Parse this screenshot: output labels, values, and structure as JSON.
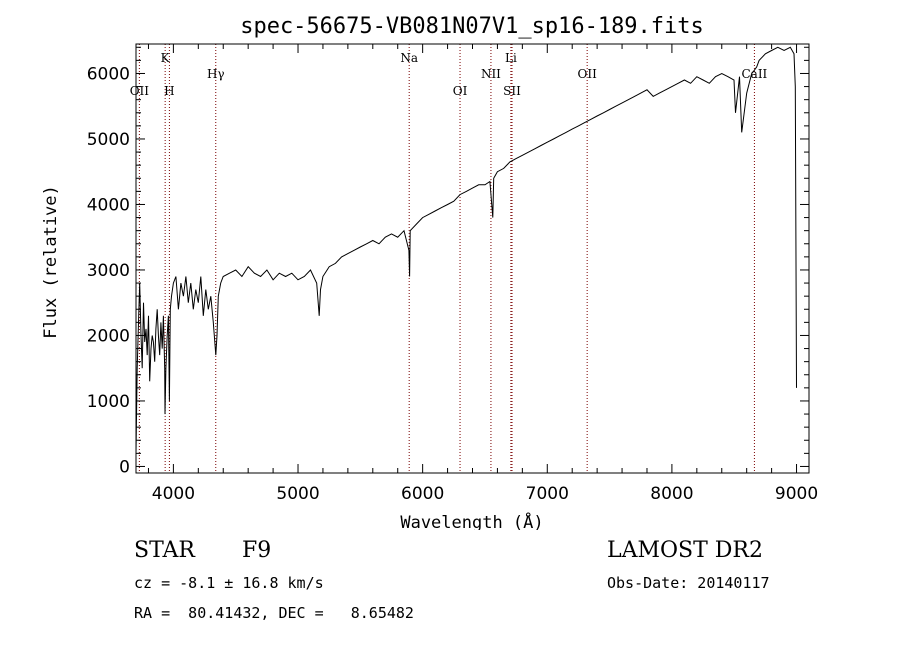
{
  "chart_data": {
    "type": "line",
    "title": "spec-56675-VB081N07V1_sp16-189.fits",
    "xlabel": "Wavelength (Å)",
    "ylabel": "Flux (relative)",
    "xlim": [
      3700,
      9100
    ],
    "ylim": [
      -100,
      6450
    ],
    "xticks": [
      4000,
      5000,
      6000,
      7000,
      8000,
      9000
    ],
    "yticks": [
      0,
      1000,
      2000,
      3000,
      4000,
      5000,
      6000
    ],
    "grid": false,
    "series": [
      {
        "x": [
          3700,
          3710,
          3720,
          3730,
          3740,
          3750,
          3760,
          3770,
          3780,
          3790,
          3800,
          3810,
          3820,
          3830,
          3840,
          3850,
          3860,
          3870,
          3880,
          3890,
          3900,
          3910,
          3920,
          3930,
          3933,
          3940,
          3950,
          3960,
          3968,
          3975,
          3985,
          4000,
          4020,
          4040,
          4060,
          4080,
          4100,
          4120,
          4140,
          4160,
          4180,
          4200,
          4220,
          4240,
          4260,
          4280,
          4300,
          4320,
          4340,
          4350,
          4360,
          4380,
          4400,
          4450,
          4500,
          4550,
          4600,
          4650,
          4700,
          4750,
          4800,
          4850,
          4900,
          4950,
          5000,
          5050,
          5100,
          5150,
          5170,
          5180,
          5200,
          5250,
          5300,
          5350,
          5400,
          5450,
          5500,
          5550,
          5600,
          5650,
          5700,
          5750,
          5800,
          5850,
          5890,
          5895,
          5900,
          5950,
          6000,
          6050,
          6100,
          6150,
          6200,
          6250,
          6300,
          6350,
          6400,
          6450,
          6500,
          6540,
          6563,
          6570,
          6600,
          6650,
          6700,
          6750,
          6800,
          6850,
          6900,
          6950,
          7000,
          7050,
          7100,
          7150,
          7200,
          7250,
          7300,
          7350,
          7400,
          7450,
          7500,
          7550,
          7600,
          7650,
          7700,
          7750,
          7800,
          7850,
          7900,
          7950,
          8000,
          8050,
          8100,
          8150,
          8200,
          8250,
          8300,
          8350,
          8400,
          8450,
          8498,
          8510,
          8542,
          8560,
          8600,
          8640,
          8662,
          8680,
          8700,
          8750,
          8800,
          8850,
          8900,
          8950,
          8980,
          8990,
          9000
        ],
        "y": [
          200,
          1500,
          2200,
          2800,
          2000,
          1500,
          2500,
          1900,
          2100,
          1700,
          2300,
          1300,
          1800,
          2000,
          1900,
          1600,
          2100,
          2400,
          2000,
          1700,
          2200,
          1800,
          2300,
          1500,
          800,
          1500,
          2000,
          2300,
          1000,
          2400,
          2600,
          2800,
          2900,
          2400,
          2800,
          2600,
          2900,
          2500,
          2800,
          2400,
          2700,
          2500,
          2900,
          2300,
          2700,
          2400,
          2600,
          2200,
          1700,
          2000,
          2600,
          2800,
          2900,
          2950,
          3000,
          2900,
          3050,
          2950,
          2900,
          3000,
          2850,
          2950,
          2900,
          2950,
          2850,
          2900,
          3000,
          2800,
          2300,
          2700,
          2900,
          3050,
          3100,
          3200,
          3250,
          3300,
          3350,
          3400,
          3450,
          3400,
          3500,
          3550,
          3500,
          3600,
          3300,
          2900,
          3600,
          3700,
          3800,
          3850,
          3900,
          3950,
          4000,
          4050,
          4150,
          4200,
          4250,
          4300,
          4300,
          4350,
          3800,
          4400,
          4500,
          4550,
          4650,
          4700,
          4750,
          4800,
          4850,
          4900,
          4950,
          5000,
          5050,
          5100,
          5150,
          5200,
          5250,
          5300,
          5350,
          5400,
          5450,
          5500,
          5550,
          5600,
          5650,
          5700,
          5750,
          5650,
          5700,
          5750,
          5800,
          5850,
          5900,
          5850,
          5950,
          5900,
          5850,
          5950,
          6000,
          5950,
          5900,
          5400,
          5950,
          5100,
          5700,
          6000,
          6050,
          6100,
          6200,
          6300,
          6350,
          6400,
          6350,
          6400,
          6300,
          5800,
          1200
        ]
      }
    ],
    "lines": [
      {
        "label": "K",
        "x": 3934,
        "row": 1
      },
      {
        "label": "H",
        "x": 3968,
        "row": 2
      },
      {
        "label": "Hγ",
        "x": 4340,
        "row": 1.5
      },
      {
        "label": "Na",
        "x": 5892,
        "row": 1
      },
      {
        "label": "OI",
        "x": 6300,
        "row": 2
      },
      {
        "label": "NII",
        "x": 6548,
        "row": 1.5
      },
      {
        "label": "Li",
        "x": 6708,
        "row": 1
      },
      {
        "label": "SII",
        "x": 6717,
        "row": 2
      },
      {
        "label": "OII",
        "x": 7320,
        "row": 1.5
      },
      {
        "label": "CaII",
        "x": 8662,
        "row": 1.5
      },
      {
        "label": "OII",
        "x": 3727,
        "row": 2
      }
    ]
  },
  "info": {
    "class": "STAR",
    "subclass": "F9",
    "survey": "LAMOST DR2",
    "cz": "cz = -8.1 ± 16.8 km/s",
    "obsdate": "Obs-Date: 20140117",
    "coords": "RA =  80.41432, DEC =   8.65482"
  },
  "colors": {
    "line": "#000000",
    "marker": "#7a0000"
  }
}
